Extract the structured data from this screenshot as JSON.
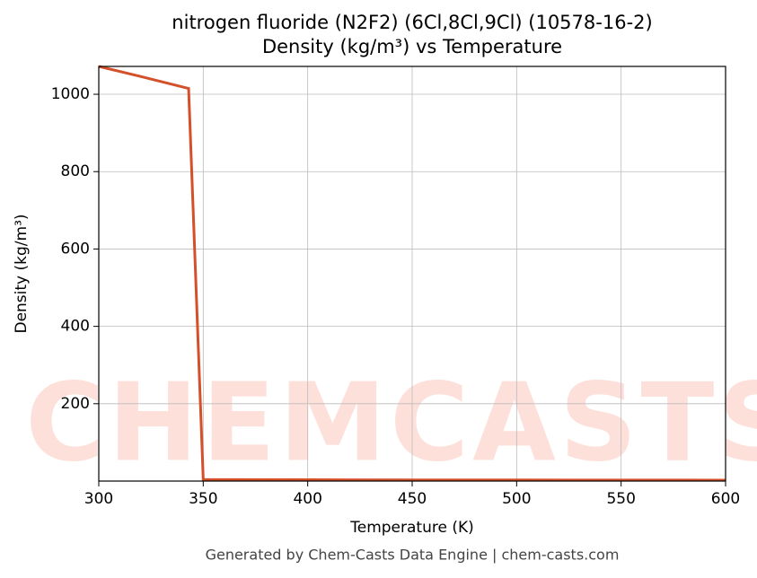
{
  "chart_data": {
    "type": "line",
    "title": "nitrogen fluoride (N2F2) (6Cl,8Cl,9Cl) (10578-16-2)",
    "subtitle": "Density (kg/m³) vs Temperature",
    "xlabel": "Temperature (K)",
    "ylabel": "Density (kg/m³)",
    "footer": "Generated by Chem-Casts Data Engine | chem-casts.com",
    "watermark": "CHEMCASTS",
    "x": [
      300,
      320,
      343,
      350,
      400,
      450,
      500,
      550,
      600
    ],
    "series": [
      {
        "name": "Density",
        "color": "#d4502a",
        "values": [
          1072,
          1046,
          1015,
          4,
          3.5,
          3,
          2.8,
          2.6,
          2.4
        ]
      }
    ],
    "xlim": [
      300,
      600
    ],
    "xticks": [
      300,
      350,
      400,
      450,
      500,
      550,
      600
    ],
    "ylim": [
      0,
      1072
    ],
    "yticks": [
      200,
      400,
      600,
      800,
      1000
    ],
    "grid": true
  }
}
